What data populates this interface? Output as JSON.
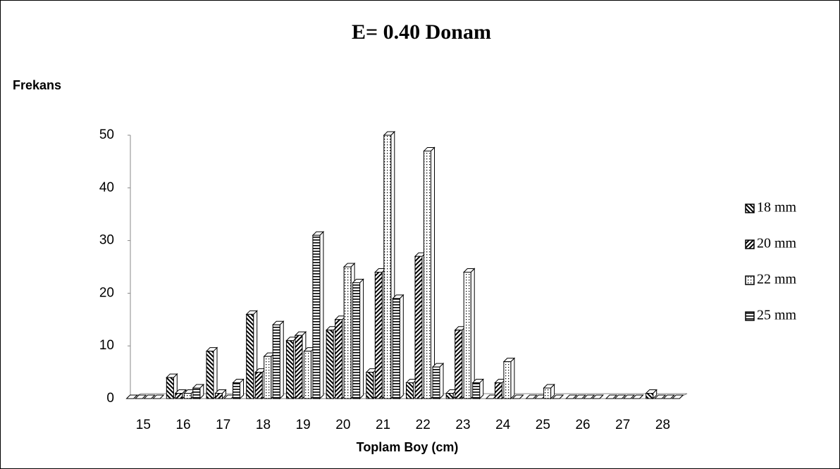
{
  "chart_data": {
    "type": "bar",
    "title": "E= 0.40 Donam",
    "y_label": "Frekans",
    "x_label": "Toplam Boy (cm)",
    "categories": [
      "15",
      "16",
      "17",
      "18",
      "19",
      "20",
      "21",
      "22",
      "23",
      "24",
      "25",
      "26",
      "27",
      "28"
    ],
    "series": [
      {
        "name": "18 mm",
        "color": "#000000",
        "pattern": "diagonal-back",
        "values": [
          0,
          4,
          9,
          16,
          11,
          13,
          5,
          3,
          1,
          0,
          0,
          0,
          0,
          1
        ]
      },
      {
        "name": "20 mm",
        "color": "#000000",
        "pattern": "diagonal-forward",
        "values": [
          0,
          1,
          1,
          5,
          12,
          15,
          24,
          27,
          13,
          3,
          0,
          0,
          0,
          0
        ]
      },
      {
        "name": "22 mm",
        "color": "#000000",
        "pattern": "dots",
        "values": [
          0,
          1,
          0,
          8,
          9,
          25,
          50,
          47,
          24,
          7,
          2,
          0,
          0,
          0
        ]
      },
      {
        "name": "25 mm",
        "color": "#000000",
        "pattern": "horizontal",
        "values": [
          0,
          2,
          3,
          14,
          31,
          22,
          19,
          6,
          3,
          0,
          0,
          0,
          0,
          0
        ]
      }
    ],
    "ylim": [
      0,
      50
    ],
    "yticks": [
      0,
      10,
      20,
      30,
      40,
      50
    ],
    "legend": "right"
  }
}
